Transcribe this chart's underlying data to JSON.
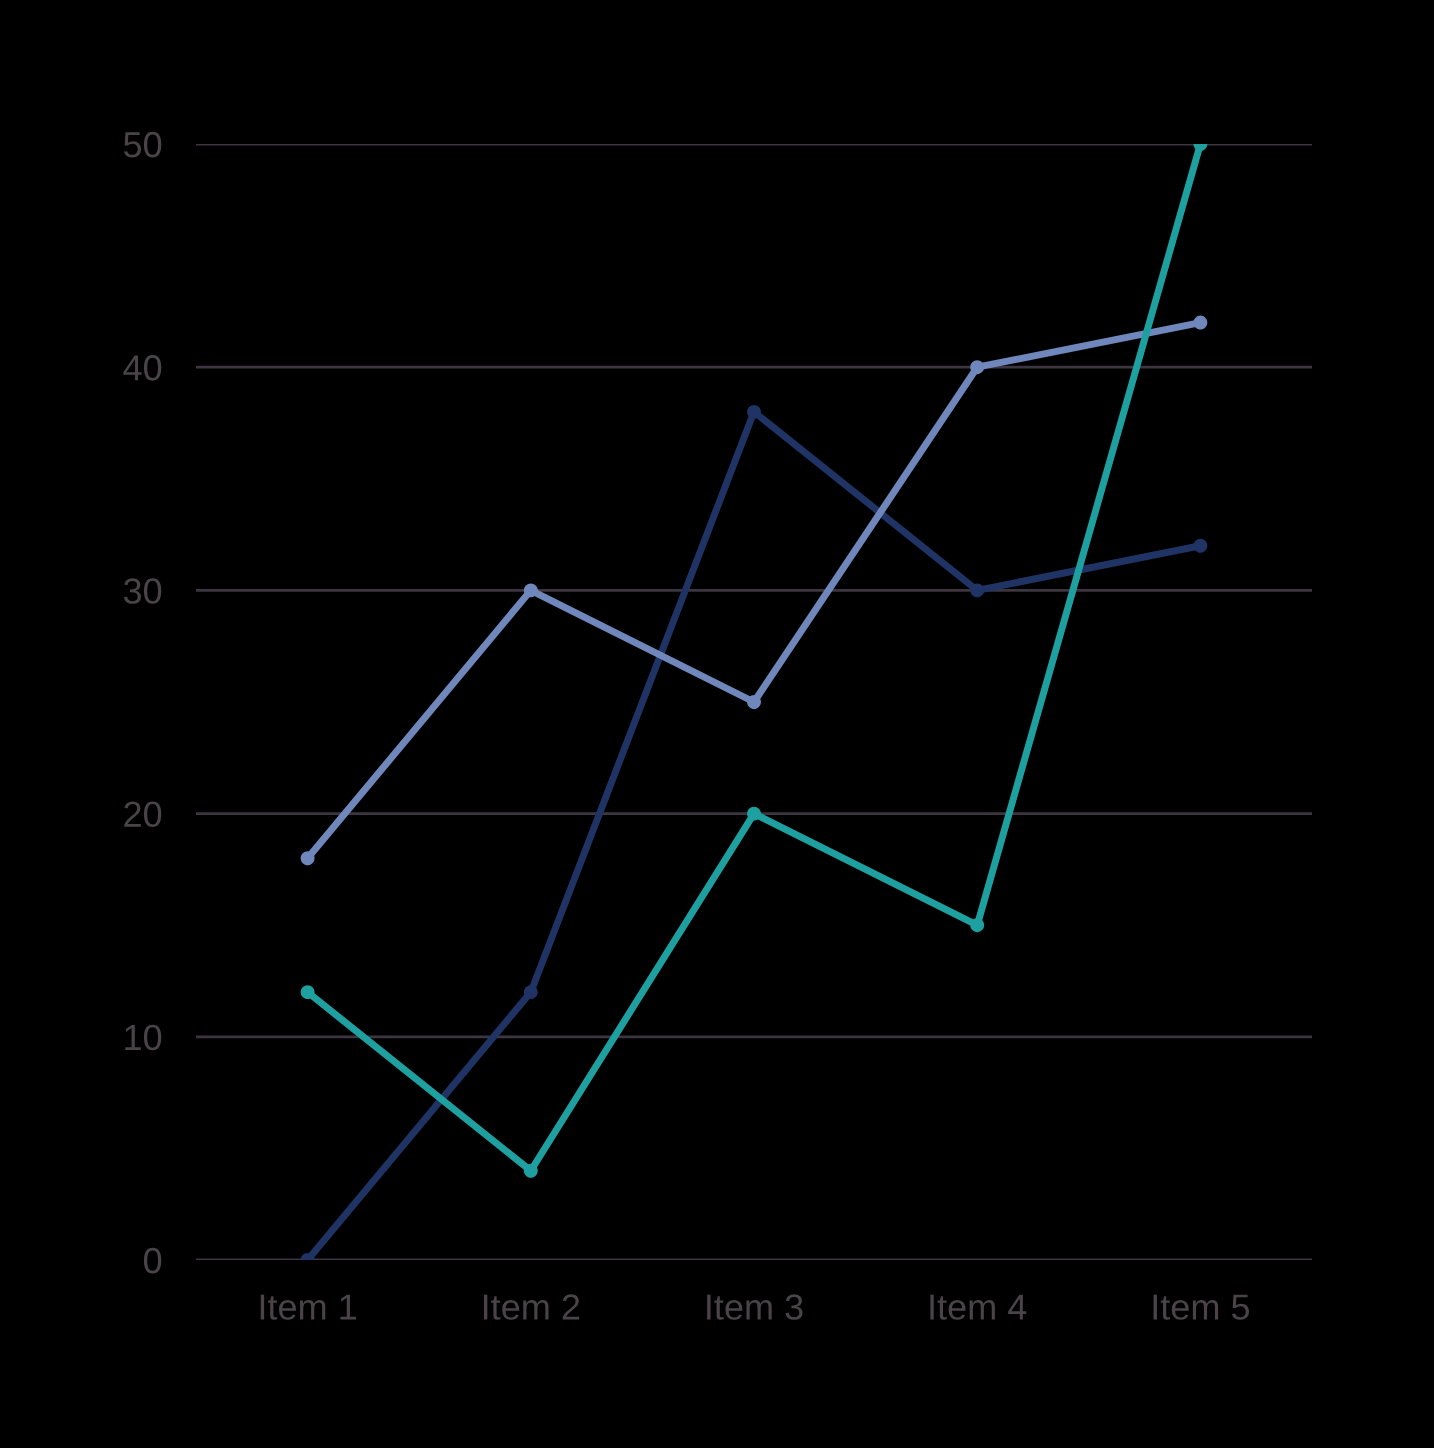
{
  "chart_data": {
    "type": "line",
    "categories": [
      "Item 1",
      "Item 2",
      "Item 3",
      "Item 4",
      "Item 5"
    ],
    "series": [
      {
        "color": "#1f3364",
        "values": [
          0,
          12,
          38,
          30,
          32
        ]
      },
      {
        "color": "#6f87bb",
        "values": [
          18,
          30,
          25,
          40,
          42
        ]
      },
      {
        "color": "#1fa0a0",
        "values": [
          12,
          4,
          20,
          15,
          50
        ]
      }
    ],
    "ylim": [
      0,
      50
    ],
    "yticks": [
      0,
      10,
      20,
      30,
      40,
      50
    ],
    "grid": "y",
    "marker": "circle",
    "line_style": "solid"
  }
}
